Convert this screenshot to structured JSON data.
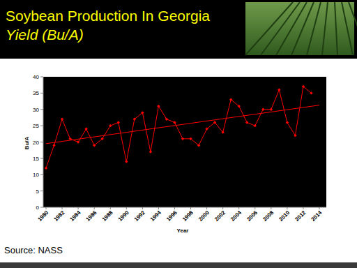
{
  "chart_data": {
    "type": "line",
    "title": "Soybean Production In Georgia",
    "subtitle": "Yield (Bu/A)",
    "x_label": "Year",
    "y_label": "Bu/A",
    "source": "Source:  NASS",
    "x": [
      1980,
      1981,
      1982,
      1983,
      1984,
      1985,
      1986,
      1987,
      1988,
      1989,
      1990,
      1991,
      1992,
      1993,
      1994,
      1995,
      1996,
      1997,
      1998,
      1999,
      2000,
      2001,
      2002,
      2003,
      2004,
      2005,
      2006,
      2007,
      2008,
      2009,
      2010,
      2011,
      2012,
      2013
    ],
    "series": [
      {
        "color": "#ff0000",
        "marker": "diamond",
        "line_style": "solid",
        "values": [
          12,
          19,
          27,
          21,
          20,
          24,
          19,
          21,
          25,
          26,
          14,
          27,
          29,
          17,
          31,
          27,
          26,
          21,
          21,
          19,
          24,
          26,
          23,
          33,
          31,
          26,
          25,
          30,
          30,
          36,
          26,
          22,
          37,
          35
        ]
      },
      {
        "color": "#ff0000",
        "marker": "none",
        "line_style": "solid",
        "x": [
          1980,
          2014
        ],
        "values": [
          19.5,
          31.3
        ]
      }
    ],
    "xlim": [
      1980,
      2014
    ],
    "xticks": [
      1980,
      1982,
      1984,
      1986,
      1988,
      1990,
      1992,
      1994,
      1996,
      1998,
      2000,
      2002,
      2004,
      2006,
      2008,
      2010,
      2012,
      2014
    ],
    "ylim": [
      0,
      40
    ],
    "yticks": [
      0,
      5,
      10,
      15,
      20,
      25,
      30,
      35,
      40
    ],
    "grid": false
  }
}
